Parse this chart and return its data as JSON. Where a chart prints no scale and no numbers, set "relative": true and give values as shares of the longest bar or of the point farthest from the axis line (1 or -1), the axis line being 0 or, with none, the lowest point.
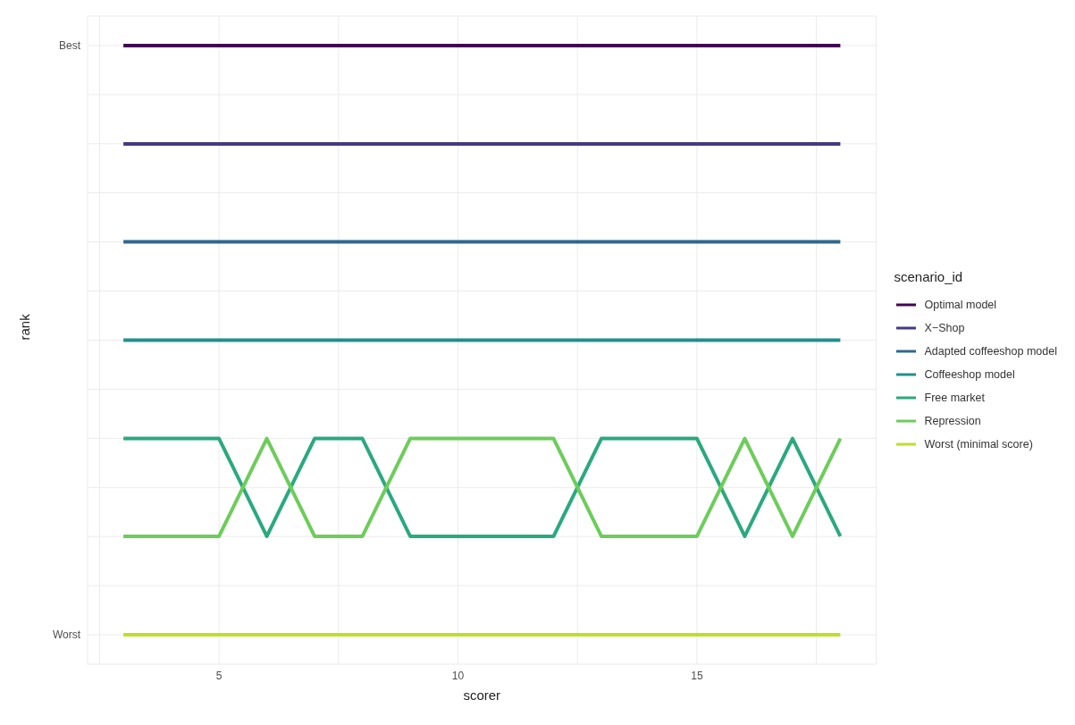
{
  "chart_data": {
    "type": "line",
    "xlabel": "scorer",
    "ylabel": "rank",
    "legend_title": "scenario_id",
    "legend": "right",
    "grid": true,
    "relative": true,
    "annotations": [
      "Best",
      "Worst"
    ],
    "x": [
      3,
      4,
      5,
      6,
      7,
      8,
      9,
      10,
      11,
      12,
      13,
      14,
      15,
      16,
      17,
      18
    ],
    "xlim": [
      2.25,
      18.75
    ],
    "xticks": [
      {
        "value": 2.5,
        "label": null
      },
      5,
      {
        "value": 7.5,
        "label": null
      },
      10,
      {
        "value": 12.5,
        "label": null
      },
      15,
      {
        "value": 17.5,
        "label": null
      }
    ],
    "series": [
      {
        "name": "Optimal model",
        "color": "#440154",
        "values": [
          1,
          1,
          1,
          1,
          1,
          1,
          1,
          1,
          1,
          1,
          1,
          1,
          1,
          1,
          1,
          1
        ]
      },
      {
        "name": "X−Shop",
        "color": "#443a83",
        "values": [
          0.833,
          0.833,
          0.833,
          0.833,
          0.833,
          0.833,
          0.833,
          0.833,
          0.833,
          0.833,
          0.833,
          0.833,
          0.833,
          0.833,
          0.833,
          0.833
        ]
      },
      {
        "name": "Adapted coffeeshop model",
        "color": "#31688e",
        "values": [
          0.667,
          0.667,
          0.667,
          0.667,
          0.667,
          0.667,
          0.667,
          0.667,
          0.667,
          0.667,
          0.667,
          0.667,
          0.667,
          0.667,
          0.667,
          0.667
        ]
      },
      {
        "name": "Coffeeshop model",
        "color": "#21908c",
        "values": [
          0.5,
          0.5,
          0.5,
          0.5,
          0.5,
          0.5,
          0.5,
          0.5,
          0.5,
          0.5,
          0.5,
          0.5,
          0.5,
          0.5,
          0.5,
          0.5
        ]
      },
      {
        "name": "Free market",
        "color": "#2aa97e",
        "values": [
          0.333,
          0.333,
          0.333,
          0.167,
          0.333,
          0.333,
          0.167,
          0.167,
          0.167,
          0.167,
          0.333,
          0.333,
          0.333,
          0.167,
          0.333,
          0.167
        ]
      },
      {
        "name": "Repression",
        "color": "#6ccd5a",
        "values": [
          0.167,
          0.167,
          0.167,
          0.333,
          0.167,
          0.167,
          0.333,
          0.333,
          0.333,
          0.333,
          0.167,
          0.167,
          0.167,
          0.333,
          0.167,
          0.333
        ]
      },
      {
        "name": "Worst (minimal score)",
        "color": "#bddf26",
        "values": [
          0,
          0,
          0,
          0,
          0,
          0,
          0,
          0,
          0,
          0,
          0,
          0,
          0,
          0,
          0,
          0
        ]
      }
    ]
  }
}
